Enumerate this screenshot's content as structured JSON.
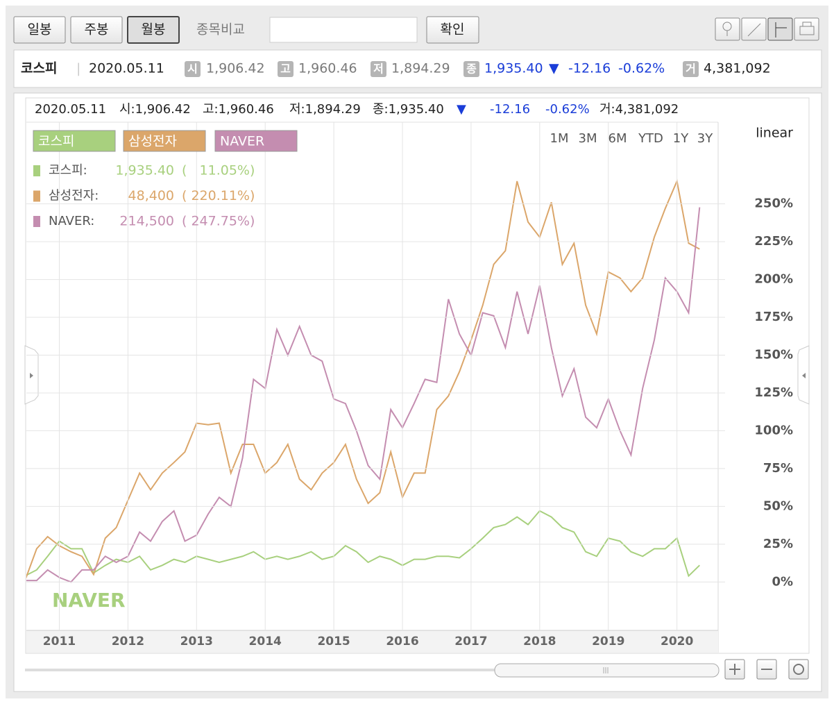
{
  "toolbar": {
    "buttons": [
      "일봉",
      "주봉",
      "월봉"
    ],
    "compare_label": "종목비교",
    "confirm": "확인"
  },
  "info_bar": {
    "name": "코스피",
    "separator": "|",
    "date": "2020.05.11",
    "open_badge": "시",
    "open": "1,906.42",
    "high_badge": "고",
    "high": "1,960.46",
    "low_badge": "저",
    "low": "1,894.29",
    "close_badge": "종",
    "close": "1,935.40",
    "arrow": "▼",
    "change": "-12.16",
    "change_pct": "-0.62%",
    "volume_badge": "거",
    "volume": "4,381,092"
  },
  "chart_data": {
    "type": "line",
    "header": {
      "date": "2020.05.11",
      "open": "시:1,906.42",
      "high": "고:1,960.46",
      "low": "저:1,894.29",
      "close": "종:1,935.40",
      "arrow": "▼",
      "change": "-12.16",
      "change_pct": "-0.62%",
      "volume": "거:4,381,092"
    },
    "period_buttons": [
      "1M",
      "3M",
      "6M",
      "YTD",
      "1Y",
      "3Y"
    ],
    "scale": "linear",
    "watermark": "NAVER",
    "legend_rows": [
      {
        "label": "코스피:",
        "price": "1,935.40",
        "pct": "(   11.05%)"
      },
      {
        "label": "삼성전자:",
        "price": "48,400",
        "pct": "( 220.11%)"
      },
      {
        "label": "NAVER:",
        "price": "214,500",
        "pct": "( 247.75%)"
      }
    ],
    "x": [
      2010.5,
      2010.67,
      2010.83,
      2011,
      2011.17,
      2011.33,
      2011.5,
      2011.67,
      2011.83,
      2012,
      2012.17,
      2012.33,
      2012.5,
      2012.67,
      2012.83,
      2013,
      2013.17,
      2013.33,
      2013.5,
      2013.67,
      2013.83,
      2014,
      2014.17,
      2014.33,
      2014.5,
      2014.67,
      2014.83,
      2015,
      2015.17,
      2015.33,
      2015.5,
      2015.67,
      2015.83,
      2016,
      2016.17,
      2016.33,
      2016.5,
      2016.67,
      2016.83,
      2017,
      2017.17,
      2017.33,
      2017.5,
      2017.67,
      2017.83,
      2018,
      2018.17,
      2018.33,
      2018.5,
      2018.67,
      2018.83,
      2019,
      2019.17,
      2019.33,
      2019.5,
      2019.67,
      2019.83,
      2020,
      2020.17,
      2020.33
    ],
    "series": [
      {
        "name": "코스피",
        "color": "#a8d07e",
        "values": [
          4,
          8,
          17,
          27,
          22,
          22,
          6,
          11,
          15,
          13,
          17,
          8,
          11,
          15,
          13,
          17,
          15,
          13,
          15,
          17,
          20,
          15,
          17,
          15,
          17,
          20,
          15,
          17,
          24,
          20,
          13,
          17,
          15,
          11,
          15,
          15,
          17,
          17,
          16,
          22,
          29,
          36,
          38,
          43,
          38,
          47,
          43,
          36,
          33,
          20,
          17,
          29,
          27,
          20,
          17,
          22,
          22,
          29,
          4,
          11.05
        ]
      },
      {
        "name": "삼성전자",
        "color": "#dba66a",
        "values": [
          1,
          22,
          30,
          24,
          20,
          17,
          5,
          29,
          36,
          54,
          72,
          61,
          72,
          79,
          86,
          105,
          104,
          105,
          72,
          91,
          91,
          72,
          79,
          91,
          68,
          61,
          72,
          79,
          91,
          68,
          52,
          59,
          86,
          56,
          72,
          72,
          114,
          123,
          139,
          160,
          183,
          210,
          219,
          265,
          238,
          228,
          251,
          210,
          224,
          183,
          164,
          205,
          201,
          192,
          201,
          228,
          247,
          265,
          224,
          220.11
        ]
      },
      {
        "name": "NAVER",
        "color": "#c48db0",
        "values": [
          1,
          1,
          8,
          3,
          0,
          8,
          8,
          17,
          13,
          17,
          33,
          27,
          40,
          47,
          27,
          31,
          45,
          56,
          50,
          82,
          134,
          128,
          167,
          150,
          169,
          150,
          146,
          121,
          118,
          100,
          77,
          68,
          114,
          102,
          118,
          134,
          132,
          187,
          164,
          150,
          178,
          176,
          155,
          192,
          164,
          196,
          155,
          123,
          141,
          109,
          102,
          121,
          100,
          84,
          128,
          160,
          201,
          192,
          178,
          247.75
        ]
      }
    ],
    "xlim": [
      2010.52,
      2020.6
    ],
    "xticks": [
      2011,
      2012,
      2013,
      2014,
      2015,
      2016,
      2017,
      2018,
      2019,
      2020
    ],
    "ylim": [
      -32,
      304
    ],
    "yticks": [
      {
        "value": 0,
        "label": "0%"
      },
      {
        "value": 25,
        "label": "25%"
      },
      {
        "value": 50,
        "label": "50%"
      },
      {
        "value": 75,
        "label": "75%"
      },
      {
        "value": 100,
        "label": "100%"
      },
      {
        "value": 125,
        "label": "125%"
      },
      {
        "value": 150,
        "label": "150%"
      },
      {
        "value": 175,
        "label": "175%"
      },
      {
        "value": 200,
        "label": "200%"
      },
      {
        "value": 225,
        "label": "225%"
      },
      {
        "value": 250,
        "label": "250%"
      }
    ],
    "grid": true
  }
}
